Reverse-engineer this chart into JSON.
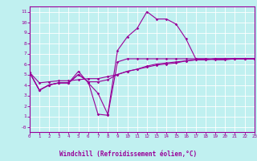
{
  "xlabel": "Windchill (Refroidissement éolien,°C)",
  "bg_color": "#c0f0f0",
  "grid_color": "#ffffff",
  "line_color": "#990099",
  "xlim": [
    0,
    23
  ],
  "ylim": [
    -0.5,
    11.5
  ],
  "xticks": [
    0,
    1,
    2,
    3,
    4,
    5,
    6,
    7,
    8,
    9,
    10,
    11,
    12,
    13,
    14,
    15,
    16,
    17,
    18,
    19,
    20,
    21,
    22,
    23
  ],
  "yticks": [
    0,
    1,
    2,
    3,
    4,
    5,
    6,
    7,
    8,
    9,
    10,
    11
  ],
  "ytick_labels": [
    "-0",
    "1",
    "2",
    "3",
    "4",
    "5",
    "6",
    "7",
    "8",
    "9",
    "10",
    "11"
  ],
  "series": [
    [
      5.2,
      3.5,
      4.0,
      4.2,
      4.2,
      5.3,
      4.2,
      3.2,
      1.2,
      7.3,
      8.6,
      9.4,
      11.0,
      10.3,
      10.3,
      9.8,
      8.4,
      6.5,
      6.5,
      6.4,
      6.4,
      6.5,
      6.5,
      6.5
    ],
    [
      5.2,
      3.5,
      4.0,
      4.2,
      4.2,
      5.0,
      4.3,
      1.2,
      1.1,
      6.2,
      6.5,
      6.5,
      6.5,
      6.5,
      6.5,
      6.5,
      6.5,
      6.5,
      6.5,
      6.5,
      6.5,
      6.5,
      6.5,
      6.5
    ],
    [
      5.2,
      3.5,
      4.0,
      4.2,
      4.2,
      5.0,
      4.3,
      4.3,
      4.5,
      5.0,
      5.3,
      5.5,
      5.8,
      6.0,
      6.1,
      6.2,
      6.3,
      6.4,
      6.4,
      6.5,
      6.5,
      6.5,
      6.5,
      6.5
    ],
    [
      5.2,
      4.2,
      4.3,
      4.4,
      4.4,
      4.5,
      4.6,
      4.6,
      4.8,
      5.0,
      5.3,
      5.5,
      5.7,
      5.9,
      6.0,
      6.1,
      6.3,
      6.4,
      6.4,
      6.5,
      6.5,
      6.5,
      6.5,
      6.5
    ]
  ]
}
